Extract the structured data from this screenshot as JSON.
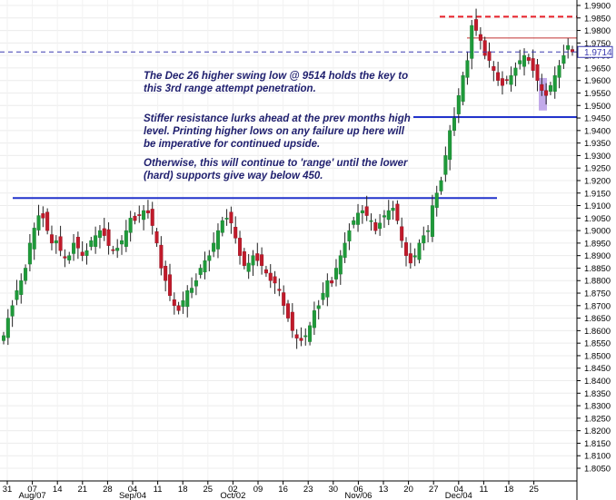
{
  "chart_data": {
    "type": "candlestick",
    "y_range": [
      1.8025,
      1.99
    ],
    "y_ticks": [
      "1.9900",
      "1.9850",
      "1.9800",
      "1.9750",
      "1.9700",
      "1.9650",
      "1.9600",
      "1.9550",
      "1.9500",
      "1.9450",
      "1.9400",
      "1.9350",
      "1.9300",
      "1.9250",
      "1.9200",
      "1.9150",
      "1.9100",
      "1.9050",
      "1.9000",
      "1.8950",
      "1.8900",
      "1.8850",
      "1.8800",
      "1.8750",
      "1.8700",
      "1.8650",
      "1.8600",
      "1.8550",
      "1.8500",
      "1.8450",
      "1.8400",
      "1.8350",
      "1.8300",
      "1.8250",
      "1.8200",
      "1.8150",
      "1.8100",
      "1.8050"
    ],
    "x_tick_labels": [
      "31",
      "07",
      "14",
      "21",
      "28",
      "04",
      "11",
      "18",
      "25",
      "02",
      "09",
      "16",
      "23",
      "30",
      "06",
      "13",
      "20",
      "27",
      "04",
      "11",
      "18",
      "25"
    ],
    "x_month_labels": [
      "Aug/07",
      "Sep/04",
      "Oct/02",
      "Nov/06",
      "Dec/04"
    ],
    "last_price": "1.9714",
    "annotations": [
      "The Dec 26 higher swing low @ 9514 holds the key to this 3rd range attempt penetration.",
      "Stiffer resistance lurks ahead at the prev months high level. Printing higher lows on any failure up here will be imperative for continued upside.",
      "Otherwise, this will continue to 'range' until the lower (hard) supports give way below 450."
    ],
    "horizontal_lines": [
      {
        "level": 1.9855,
        "color": "#e8202a",
        "style": "dashed"
      },
      {
        "level": 1.977,
        "color": "#c03030",
        "style": "solid"
      },
      {
        "level": 1.9454,
        "color": "#2233cc",
        "style": "solid"
      },
      {
        "level": 1.913,
        "color": "#2233cc",
        "style": "solid"
      }
    ],
    "closes": [
      1.858,
      1.865,
      1.87,
      1.876,
      1.88,
      1.885,
      1.895,
      1.901,
      1.906,
      1.905,
      1.9,
      1.895,
      1.896,
      1.892,
      1.889,
      1.89,
      1.895,
      1.893,
      1.89,
      1.892,
      1.896,
      1.898,
      1.9,
      1.898,
      1.894,
      1.892,
      1.893,
      1.896,
      1.9,
      1.905,
      1.904,
      1.906,
      1.908,
      1.907,
      1.902,
      1.895,
      1.885,
      1.88,
      1.874,
      1.87,
      1.868,
      1.872,
      1.876,
      1.877,
      1.88,
      1.885,
      1.888,
      1.89,
      1.895,
      1.9,
      1.904,
      1.905,
      1.903,
      1.897,
      1.89,
      1.886,
      1.887,
      1.89,
      1.888,
      1.886,
      1.883,
      1.88,
      1.879,
      1.876,
      1.87,
      1.865,
      1.86,
      1.857,
      1.856,
      1.858,
      1.862,
      1.868,
      1.87,
      1.875,
      1.88,
      1.879,
      1.885,
      1.89,
      1.895,
      1.9,
      1.904,
      1.907,
      1.908,
      1.906,
      1.904,
      1.9,
      1.903,
      1.906,
      1.908,
      1.909,
      1.904,
      1.896,
      1.89,
      1.887,
      1.89,
      1.895,
      1.898,
      1.9,
      1.91,
      1.915,
      1.92,
      1.93,
      1.94,
      1.945,
      1.954,
      1.962,
      1.968,
      1.982,
      1.98,
      1.976,
      1.97,
      1.968,
      1.964,
      1.96,
      1.958,
      1.96,
      1.962,
      1.965,
      1.968,
      1.97,
      1.968,
      1.964,
      1.96,
      1.956,
      1.954,
      1.958,
      1.962,
      1.966,
      1.97,
      1.974,
      1.9714
    ]
  }
}
